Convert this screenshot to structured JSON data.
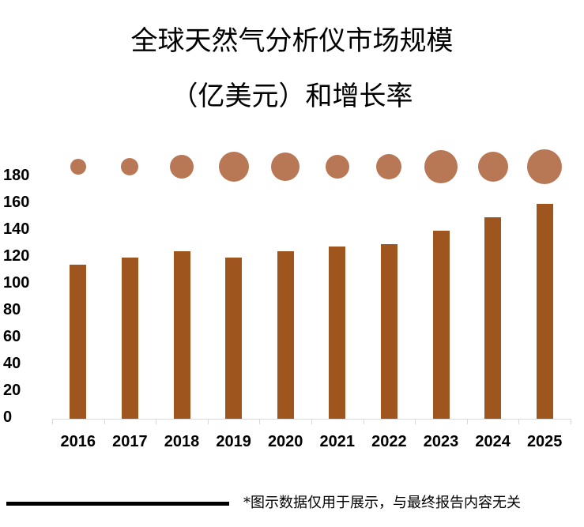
{
  "title_line1": "全球天然气分析仪市场规模",
  "title_line2": "（亿美元）和增长率",
  "footnote": "*图示数据仅用于展示，与最终报告内容无关",
  "colors": {
    "bar": "#9E561E",
    "bubble": "#B87855",
    "axis": "#d9d9d9"
  },
  "y_ticks": [
    "180",
    "160",
    "140",
    "120",
    "100",
    "80",
    "60",
    "40",
    "20",
    "0"
  ],
  "x_ticks": [
    "2016",
    "2017",
    "2018",
    "2019",
    "2020",
    "2021",
    "2022",
    "2023",
    "2024",
    "2025"
  ],
  "chart_data": {
    "type": "bar",
    "title": "全球天然气分析仪市场规模（亿美元）和增长率",
    "xlabel": "",
    "ylabel": "",
    "categories": [
      "2016",
      "2017",
      "2018",
      "2019",
      "2020",
      "2021",
      "2022",
      "2023",
      "2024",
      "2025"
    ],
    "series": [
      {
        "name": "市场规模（亿美元）",
        "type": "bar",
        "values": [
          115,
          120,
          125,
          120,
          125,
          128,
          130,
          140,
          150,
          160
        ]
      },
      {
        "name": "增长率（气泡大小，未标注）",
        "type": "bubble",
        "relative_size": [
          10,
          11,
          15,
          19,
          18,
          15,
          16,
          21,
          19,
          22
        ]
      }
    ],
    "ylim": [
      0,
      180
    ],
    "yticks": [
      0,
      20,
      40,
      60,
      80,
      100,
      120,
      140,
      160,
      180
    ],
    "grid": false,
    "legend": "none"
  }
}
